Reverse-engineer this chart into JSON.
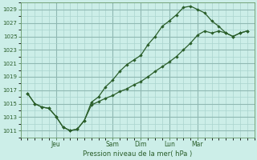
{
  "xlabel": "Pression niveau de la mer( hPa )",
  "background_color": "#cceee8",
  "grid_color": "#aad4ce",
  "line_color": "#2a5e2a",
  "ylim": [
    1010,
    1030
  ],
  "yticks": [
    1011,
    1013,
    1015,
    1017,
    1019,
    1021,
    1023,
    1025,
    1027,
    1029
  ],
  "day_labels": [
    "Jeu",
    "Sam",
    "Dim",
    "Lun",
    "Mar"
  ],
  "day_positions": [
    2,
    6,
    8,
    10,
    12
  ],
  "xlim_max": 16,
  "series1_x": [
    0,
    0.5,
    1,
    1.5,
    2,
    2.5,
    3,
    3.5,
    4,
    4.5,
    5,
    5.5,
    6,
    6.5,
    7,
    7.5,
    8,
    8.5,
    9,
    9.5,
    10,
    10.5,
    11,
    11.5,
    12,
    12.5,
    13,
    13.5,
    14,
    14.5,
    15,
    15.5
  ],
  "series1_y": [
    1016.5,
    1015.0,
    1014.5,
    1014.3,
    1013.1,
    1011.5,
    1011.0,
    1011.2,
    1012.5,
    1015.2,
    1016.0,
    1017.5,
    1018.5,
    1019.8,
    1020.8,
    1021.5,
    1022.2,
    1023.8,
    1025.0,
    1026.5,
    1027.3,
    1028.2,
    1029.3,
    1029.5,
    1029.0,
    1028.5,
    1027.3,
    1026.5,
    1025.5,
    1025.0,
    1025.5,
    1025.8
  ],
  "series2_x": [
    0,
    0.5,
    1,
    1.5,
    2,
    2.5,
    3,
    3.5,
    4,
    4.5,
    5,
    5.5,
    6,
    6.5,
    7,
    7.5,
    8,
    8.5,
    9,
    9.5,
    10,
    10.5,
    11,
    11.5,
    12,
    12.5,
    13,
    13.5,
    14,
    14.5,
    15,
    15.5
  ],
  "series2_y": [
    1016.5,
    1015.0,
    1014.5,
    1014.3,
    1013.1,
    1011.5,
    1011.0,
    1011.2,
    1012.5,
    1014.8,
    1015.3,
    1015.8,
    1016.2,
    1016.8,
    1017.2,
    1017.8,
    1018.3,
    1019.0,
    1019.8,
    1020.5,
    1021.2,
    1022.0,
    1023.0,
    1024.0,
    1025.2,
    1025.8,
    1025.5,
    1025.8,
    1025.5,
    1025.0,
    1025.5,
    1025.8
  ]
}
